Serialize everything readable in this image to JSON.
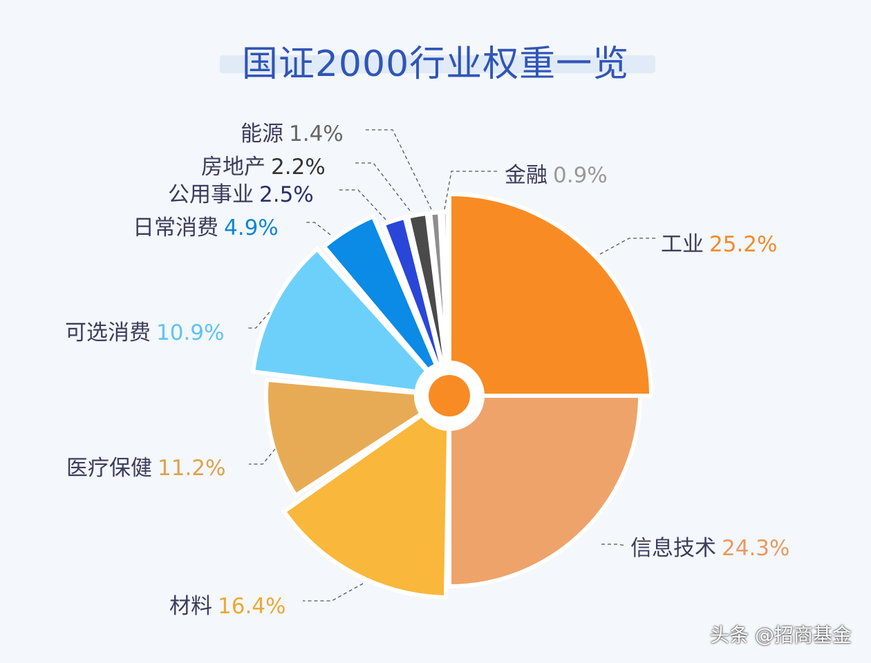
{
  "chart_data": {
    "type": "pie",
    "variant": "rose",
    "title": "国证2000行业权重一览",
    "unit": "%",
    "slices": [
      {
        "label": "工业",
        "value": 25.2,
        "color": "#f98b24"
      },
      {
        "label": "信息技术",
        "value": 24.3,
        "color": "#eea36a"
      },
      {
        "label": "材料",
        "value": 16.4,
        "color": "#f9b73b"
      },
      {
        "label": "医疗保健",
        "value": 11.2,
        "color": "#e8ab55"
      },
      {
        "label": "可选消费",
        "value": 10.9,
        "color": "#6dd0fb"
      },
      {
        "label": "日常消费",
        "value": 4.9,
        "color": "#0b8ae6"
      },
      {
        "label": "公用事业",
        "value": 2.5,
        "color": "#2a46d9"
      },
      {
        "label": "房地产",
        "value": 2.2,
        "color": "#4a4a4a"
      },
      {
        "label": "能源",
        "value": 1.4,
        "color": "#8e8e8e"
      },
      {
        "label": "金融",
        "value": 0.9,
        "color": "#b3b3b3"
      }
    ],
    "value_labels": [
      "25.2%",
      "24.3%",
      "16.4%",
      "11.2%",
      "10.9%",
      "4.9%",
      "2.5%",
      "2.2%",
      "1.4%",
      "0.9%"
    ],
    "center_dot_color": "#f98b24"
  },
  "watermark": "头条 @招商基金"
}
